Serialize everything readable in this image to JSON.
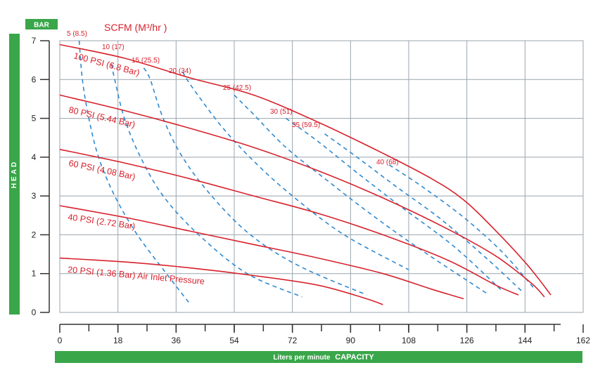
{
  "chart_data": {
    "type": "line",
    "title": "SCFM (M³/hr )",
    "xlabel": "Liters per minute",
    "xlabel_bold": "CAPACITY",
    "ylabel": "HEAD",
    "ylabel_unit": "BAR",
    "xlim": [
      0,
      162
    ],
    "ylim": [
      0,
      7
    ],
    "x_ticks": [
      0,
      18,
      36,
      54,
      72,
      90,
      108,
      126,
      144,
      162
    ],
    "y_ticks": [
      0,
      1,
      2,
      3,
      4,
      5,
      6,
      7
    ],
    "grid": true,
    "colors": {
      "pressure": "#d7222c",
      "air": "#2f8ad2",
      "band": "#3aa64a",
      "grid": "#9aa5ad",
      "axis": "#333333"
    },
    "pressure_series": [
      {
        "name": "100 PSI (6.8 Bar)",
        "x": [
          0,
          20,
          40,
          60,
          80,
          100,
          115,
          125,
          135,
          145,
          152
        ],
        "y": [
          6.9,
          6.55,
          6.05,
          5.6,
          4.9,
          4.1,
          3.45,
          2.9,
          2.1,
          1.2,
          0.45
        ]
      },
      {
        "name": "80 PSI (5.44 Bar)",
        "x": [
          0,
          20,
          40,
          60,
          80,
          100,
          120,
          135,
          146,
          150
        ],
        "y": [
          5.6,
          5.2,
          4.75,
          4.25,
          3.65,
          2.95,
          2.15,
          1.45,
          0.75,
          0.4
        ]
      },
      {
        "name": "60 PSI (4.08 Bar)",
        "x": [
          0,
          20,
          40,
          60,
          80,
          100,
          120,
          135,
          142
        ],
        "y": [
          4.2,
          3.85,
          3.45,
          3.0,
          2.55,
          2.0,
          1.35,
          0.7,
          0.45
        ]
      },
      {
        "name": "40 PSI (2.72 Bar)",
        "x": [
          0,
          20,
          40,
          60,
          80,
          100,
          115,
          125
        ],
        "y": [
          2.75,
          2.45,
          2.1,
          1.75,
          1.4,
          1.0,
          0.6,
          0.35
        ]
      },
      {
        "name": "20 PSI (1.36 Bar) Air Inlet Pressure",
        "x": [
          0,
          20,
          40,
          60,
          80,
          95,
          100
        ],
        "y": [
          1.4,
          1.3,
          1.15,
          0.95,
          0.7,
          0.35,
          0.2
        ]
      }
    ],
    "air_series": [
      {
        "name": "5 (8.5)",
        "x": [
          6,
          7,
          9,
          12,
          17,
          24,
          33,
          40
        ],
        "y": [
          7.0,
          6.0,
          5.0,
          4.0,
          3.0,
          2.0,
          1.0,
          0.25
        ]
      },
      {
        "name": "10 (17)",
        "x": [
          16,
          17,
          20,
          25,
          32,
          43,
          58,
          75
        ],
        "y": [
          6.4,
          6.0,
          5.0,
          4.0,
          3.0,
          2.0,
          1.0,
          0.4
        ]
      },
      {
        "name": "15 (25.5)",
        "x": [
          26,
          28,
          32,
          38,
          47,
          59,
          74,
          95
        ],
        "y": [
          6.3,
          6.0,
          5.0,
          4.0,
          3.0,
          2.0,
          1.2,
          0.45
        ]
      },
      {
        "name": "20 (34)",
        "x": [
          38,
          41,
          50,
          60,
          72,
          88,
          108
        ],
        "y": [
          6.2,
          5.8,
          4.8,
          3.9,
          3.0,
          2.0,
          1.1
        ]
      },
      {
        "name": "25 (42.5)",
        "x": [
          54,
          60,
          70,
          82,
          96,
          112,
          132
        ],
        "y": [
          5.6,
          5.1,
          4.25,
          3.45,
          2.55,
          1.6,
          0.5
        ]
      },
      {
        "name": "30 (51)",
        "x": [
          70,
          80,
          92,
          106,
          122,
          137
        ],
        "y": [
          5.0,
          4.4,
          3.6,
          2.7,
          1.7,
          0.55
        ]
      },
      {
        "name": "35 (59.5)",
        "x": [
          82,
          92,
          104,
          118,
          132,
          143
        ],
        "y": [
          4.6,
          4.0,
          3.25,
          2.4,
          1.4,
          0.55
        ]
      },
      {
        "name": "40 (68)",
        "x": [
          102,
          112,
          125,
          137,
          147
        ],
        "y": [
          3.8,
          3.25,
          2.45,
          1.55,
          0.6
        ]
      }
    ]
  }
}
